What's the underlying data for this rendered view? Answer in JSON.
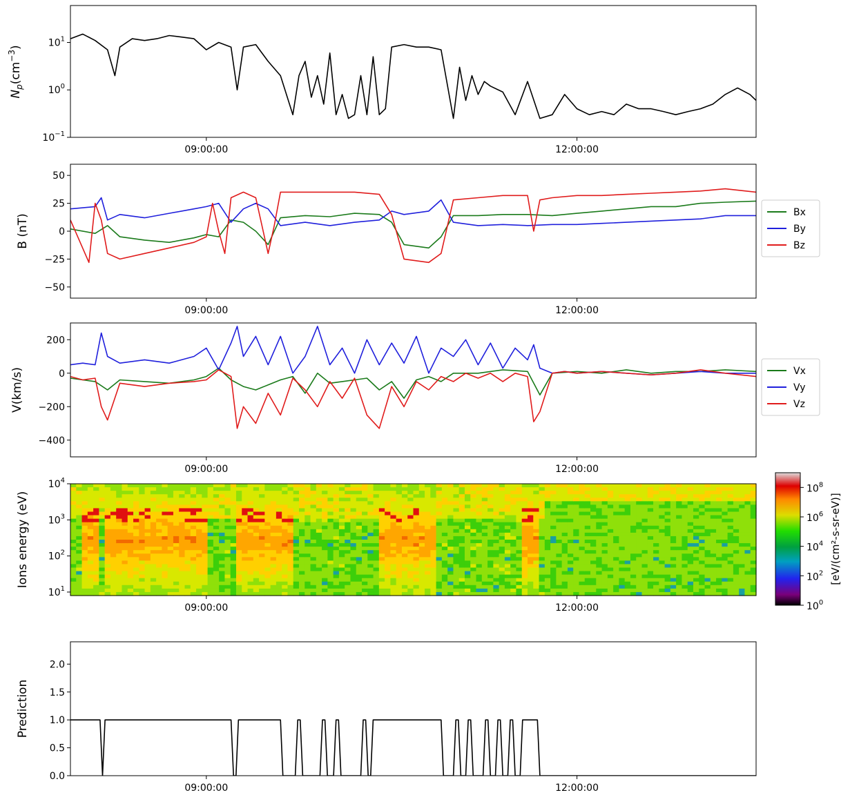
{
  "chart_data": [
    {
      "type": "line",
      "ylabel": "N_p(cm^-3)",
      "ylabel_main": "N",
      "ylabel_sub": "p",
      "ylabel_unit": "(cm",
      "ylabel_exp": "−3",
      "ylabel_close": ")",
      "yscale": "log",
      "ylim": [
        0.1,
        60
      ],
      "yticks": [
        {
          "base": "10",
          "exp": "−1",
          "value": 0.1
        },
        {
          "base": "10",
          "exp": "0",
          "value": 1
        },
        {
          "base": "10",
          "exp": "1",
          "value": 10
        }
      ],
      "xrange_hours": [
        7.9,
        13.45
      ],
      "xticks": [
        {
          "label": "09:00:00",
          "hour": 9
        },
        {
          "label": "12:00:00",
          "hour": 12
        }
      ],
      "series": [
        {
          "color": "#000000",
          "x": [
            7.9,
            8.0,
            8.1,
            8.2,
            8.26,
            8.3,
            8.4,
            8.5,
            8.6,
            8.7,
            8.8,
            8.9,
            9.0,
            9.1,
            9.2,
            9.25,
            9.3,
            9.4,
            9.5,
            9.6,
            9.7,
            9.75,
            9.8,
            9.85,
            9.9,
            9.95,
            10.0,
            10.05,
            10.1,
            10.15,
            10.2,
            10.25,
            10.3,
            10.35,
            10.4,
            10.45,
            10.5,
            10.6,
            10.7,
            10.8,
            10.9,
            11.0,
            11.05,
            11.1,
            11.15,
            11.2,
            11.25,
            11.3,
            11.4,
            11.5,
            11.6,
            11.7,
            11.8,
            11.9,
            12.0,
            12.1,
            12.2,
            12.3,
            12.4,
            12.5,
            12.6,
            12.7,
            12.8,
            12.9,
            13.0,
            13.1,
            13.2,
            13.3,
            13.4,
            13.45
          ],
          "values": [
            12,
            15,
            11,
            7,
            2,
            8,
            12,
            11,
            12,
            14,
            13,
            12,
            7,
            10,
            8,
            1,
            8,
            9,
            4,
            2,
            0.3,
            2,
            4,
            0.7,
            2,
            0.5,
            6,
            0.3,
            0.8,
            0.25,
            0.3,
            2,
            0.3,
            5,
            0.3,
            0.4,
            8,
            9,
            8,
            8,
            7,
            0.25,
            3,
            0.6,
            2,
            0.8,
            1.5,
            1.2,
            0.9,
            0.3,
            1.5,
            0.25,
            0.3,
            0.8,
            0.4,
            0.3,
            0.35,
            0.3,
            0.5,
            0.4,
            0.4,
            0.35,
            0.3,
            0.35,
            0.4,
            0.5,
            0.8,
            1.1,
            0.8,
            0.6
          ]
        }
      ]
    },
    {
      "type": "line",
      "ylabel": "B (nT)",
      "ylim": [
        -60,
        60
      ],
      "yticks": [
        {
          "label": "50",
          "value": 50
        },
        {
          "label": "25",
          "value": 25
        },
        {
          "label": "0",
          "value": 0
        },
        {
          "label": "−25",
          "value": -25
        },
        {
          "label": "−50",
          "value": -50
        }
      ],
      "xrange_hours": [
        7.9,
        13.45
      ],
      "xticks": [
        {
          "label": "09:00:00",
          "hour": 9
        },
        {
          "label": "12:00:00",
          "hour": 12
        }
      ],
      "legend": "right",
      "series": [
        {
          "name": "Bx",
          "color": "#1a7a1a",
          "x": [
            7.9,
            8.1,
            8.2,
            8.3,
            8.5,
            8.7,
            8.9,
            9.0,
            9.1,
            9.2,
            9.3,
            9.4,
            9.5,
            9.6,
            9.8,
            10.0,
            10.2,
            10.4,
            10.5,
            10.6,
            10.8,
            10.9,
            11.0,
            11.2,
            11.4,
            11.6,
            11.8,
            12.0,
            12.2,
            12.4,
            12.6,
            12.8,
            13.0,
            13.2,
            13.45
          ],
          "values": [
            2,
            -2,
            5,
            -5,
            -8,
            -10,
            -6,
            -3,
            -5,
            10,
            8,
            0,
            -12,
            12,
            14,
            13,
            16,
            15,
            8,
            -12,
            -15,
            -5,
            14,
            14,
            15,
            15,
            14,
            16,
            18,
            20,
            22,
            22,
            25,
            26,
            27
          ]
        },
        {
          "name": "By",
          "color": "#1f1fdc",
          "x": [
            7.9,
            8.1,
            8.15,
            8.2,
            8.3,
            8.5,
            8.7,
            8.9,
            9.0,
            9.1,
            9.2,
            9.3,
            9.4,
            9.5,
            9.6,
            9.8,
            10.0,
            10.2,
            10.4,
            10.5,
            10.6,
            10.8,
            10.9,
            11.0,
            11.2,
            11.4,
            11.6,
            11.8,
            12.0,
            12.2,
            12.4,
            12.6,
            12.8,
            13.0,
            13.2,
            13.45
          ],
          "values": [
            20,
            22,
            30,
            10,
            15,
            12,
            16,
            20,
            22,
            25,
            8,
            20,
            25,
            20,
            5,
            8,
            5,
            8,
            10,
            18,
            15,
            18,
            28,
            8,
            5,
            6,
            5,
            6,
            6,
            7,
            8,
            9,
            10,
            11,
            14,
            14
          ]
        },
        {
          "name": "Bz",
          "color": "#e01b1b",
          "x": [
            7.9,
            8.05,
            8.1,
            8.15,
            8.2,
            8.3,
            8.5,
            8.7,
            8.9,
            9.0,
            9.05,
            9.1,
            9.15,
            9.2,
            9.3,
            9.4,
            9.5,
            9.55,
            9.6,
            9.8,
            10.0,
            10.2,
            10.4,
            10.5,
            10.6,
            10.8,
            10.9,
            11.0,
            11.2,
            11.4,
            11.6,
            11.65,
            11.7,
            11.8,
            12.0,
            12.2,
            12.4,
            12.6,
            12.8,
            13.0,
            13.2,
            13.45
          ],
          "values": [
            10,
            -28,
            25,
            10,
            -20,
            -25,
            -20,
            -15,
            -10,
            -5,
            25,
            0,
            -20,
            30,
            35,
            30,
            -20,
            5,
            35,
            35,
            35,
            35,
            33,
            15,
            -25,
            -28,
            -20,
            28,
            30,
            32,
            32,
            0,
            28,
            30,
            32,
            32,
            33,
            34,
            35,
            36,
            38,
            35
          ]
        }
      ]
    },
    {
      "type": "line",
      "ylabel": "V(km/s)",
      "ylim": [
        -500,
        300
      ],
      "yticks": [
        {
          "label": "200",
          "value": 200
        },
        {
          "label": "0",
          "value": 0
        },
        {
          "label": "−200",
          "value": -200
        },
        {
          "label": "−400",
          "value": -400
        }
      ],
      "xrange_hours": [
        7.9,
        13.45
      ],
      "xticks": [
        {
          "label": "09:00:00",
          "hour": 9
        },
        {
          "label": "12:00:00",
          "hour": 12
        }
      ],
      "legend": "right",
      "series": [
        {
          "name": "Vx",
          "color": "#1a7a1a",
          "x": [
            7.9,
            8.1,
            8.2,
            8.3,
            8.5,
            8.7,
            8.9,
            9.0,
            9.1,
            9.2,
            9.3,
            9.4,
            9.5,
            9.6,
            9.7,
            9.8,
            9.9,
            10.0,
            10.1,
            10.2,
            10.3,
            10.4,
            10.5,
            10.6,
            10.7,
            10.8,
            10.9,
            11.0,
            11.2,
            11.4,
            11.6,
            11.7,
            11.8,
            12.0,
            12.2,
            12.4,
            12.6,
            12.8,
            13.0,
            13.2,
            13.45
          ],
          "values": [
            -30,
            -50,
            -100,
            -40,
            -50,
            -60,
            -40,
            -20,
            30,
            -40,
            -80,
            -100,
            -70,
            -40,
            -20,
            -120,
            0,
            -60,
            -50,
            -40,
            -30,
            -100,
            -50,
            -150,
            -40,
            -20,
            -50,
            0,
            0,
            20,
            10,
            -130,
            0,
            10,
            0,
            20,
            0,
            10,
            10,
            20,
            10
          ]
        },
        {
          "name": "Vy",
          "color": "#1f1fdc",
          "x": [
            7.9,
            8.0,
            8.1,
            8.15,
            8.2,
            8.3,
            8.5,
            8.7,
            8.9,
            9.0,
            9.1,
            9.2,
            9.25,
            9.3,
            9.4,
            9.5,
            9.6,
            9.7,
            9.8,
            9.9,
            10.0,
            10.1,
            10.2,
            10.3,
            10.4,
            10.5,
            10.6,
            10.7,
            10.8,
            10.9,
            11.0,
            11.1,
            11.2,
            11.3,
            11.4,
            11.5,
            11.6,
            11.65,
            11.7,
            11.8,
            11.9,
            12.0,
            12.2,
            12.4,
            12.6,
            12.8,
            13.0,
            13.2,
            13.45
          ],
          "values": [
            50,
            60,
            50,
            240,
            100,
            60,
            80,
            60,
            100,
            150,
            20,
            180,
            280,
            100,
            220,
            50,
            220,
            0,
            100,
            280,
            50,
            150,
            0,
            200,
            50,
            180,
            60,
            220,
            0,
            150,
            100,
            200,
            50,
            180,
            30,
            150,
            80,
            170,
            30,
            0,
            10,
            0,
            10,
            0,
            -10,
            0,
            10,
            0,
            0
          ]
        },
        {
          "name": "Vz",
          "color": "#e01b1b",
          "x": [
            7.9,
            8.0,
            8.1,
            8.15,
            8.2,
            8.3,
            8.5,
            8.7,
            8.9,
            9.0,
            9.1,
            9.2,
            9.25,
            9.3,
            9.4,
            9.5,
            9.6,
            9.7,
            9.8,
            9.9,
            10.0,
            10.1,
            10.2,
            10.3,
            10.4,
            10.5,
            10.6,
            10.7,
            10.8,
            10.9,
            11.0,
            11.1,
            11.2,
            11.3,
            11.4,
            11.5,
            11.6,
            11.65,
            11.7,
            11.8,
            11.9,
            12.0,
            12.2,
            12.4,
            12.6,
            12.8,
            13.0,
            13.2,
            13.45
          ],
          "values": [
            -20,
            -40,
            -30,
            -200,
            -280,
            -60,
            -80,
            -60,
            -50,
            -40,
            20,
            -20,
            -330,
            -200,
            -300,
            -120,
            -250,
            -30,
            -100,
            -200,
            -50,
            -150,
            -30,
            -250,
            -330,
            -80,
            -200,
            -50,
            -100,
            -20,
            -50,
            0,
            -30,
            0,
            -50,
            0,
            -20,
            -290,
            -230,
            0,
            10,
            0,
            10,
            0,
            -10,
            0,
            20,
            0,
            -20
          ]
        }
      ]
    },
    {
      "type": "heatmap",
      "ylabel": "Ions energy (eV)",
      "yscale": "log",
      "ylim": [
        8,
        10000
      ],
      "yticks": [
        {
          "base": "10",
          "exp": "1",
          "value": 10
        },
        {
          "base": "10",
          "exp": "2",
          "value": 100
        },
        {
          "base": "10",
          "exp": "3",
          "value": 1000
        },
        {
          "base": "10",
          "exp": "4",
          "value": 10000
        }
      ],
      "xrange_hours": [
        7.9,
        13.45
      ],
      "xticks": [
        {
          "label": "09:00:00",
          "hour": 9
        },
        {
          "label": "12:00:00",
          "hour": 12
        }
      ],
      "intense_intervals_hours": [
        [
          8.0,
          8.15
        ],
        [
          8.2,
          9.0
        ],
        [
          9.25,
          9.7
        ],
        [
          10.4,
          10.85
        ],
        [
          11.55,
          11.7
        ]
      ],
      "colorbar": {
        "label": "[eV/(cm²-s-sr-eV)]",
        "scale": "log",
        "range": [
          1,
          1000000000
        ],
        "ticks": [
          {
            "base": "10",
            "exp": "8",
            "value": 100000000
          },
          {
            "base": "10",
            "exp": "6",
            "value": 1000000
          },
          {
            "base": "10",
            "exp": "4",
            "value": 10000
          },
          {
            "base": "10",
            "exp": "2",
            "value": 100
          },
          {
            "base": "10",
            "exp": "0",
            "value": 1
          }
        ]
      }
    },
    {
      "type": "line",
      "ylabel": "Prediction",
      "ylim": [
        0,
        2.4
      ],
      "yticks": [
        {
          "label": "2.0",
          "value": 2.0
        },
        {
          "label": "1.5",
          "value": 1.5
        },
        {
          "label": "1.0",
          "value": 1.0
        },
        {
          "label": "0.5",
          "value": 0.5
        },
        {
          "label": "0.0",
          "value": 0.0
        }
      ],
      "xrange_hours": [
        7.9,
        13.45
      ],
      "xticks": [
        {
          "label": "09:00:00",
          "hour": 9
        },
        {
          "label": "12:00:00",
          "hour": 12
        }
      ],
      "series": [
        {
          "color": "#000000",
          "x": [
            7.9,
            8.14,
            8.16,
            8.18,
            8.2,
            9.2,
            9.22,
            9.24,
            9.26,
            9.6,
            9.62,
            9.72,
            9.74,
            9.76,
            9.78,
            9.92,
            9.94,
            9.96,
            9.98,
            10.03,
            10.05,
            10.07,
            10.09,
            10.25,
            10.27,
            10.29,
            10.31,
            10.33,
            10.35,
            10.37,
            10.39,
            10.9,
            10.92,
            11.0,
            11.02,
            11.04,
            11.06,
            11.1,
            11.12,
            11.14,
            11.16,
            11.24,
            11.26,
            11.28,
            11.3,
            11.34,
            11.36,
            11.38,
            11.4,
            11.44,
            11.46,
            11.48,
            11.5,
            11.54,
            11.56,
            11.58,
            11.6,
            11.68,
            11.7,
            11.72,
            13.45
          ],
          "values": [
            1,
            1,
            0,
            1,
            1,
            1,
            0,
            0,
            1,
            1,
            0,
            0,
            1,
            1,
            0,
            0,
            1,
            1,
            0,
            0,
            1,
            1,
            0,
            0,
            1,
            1,
            0,
            0,
            1,
            1,
            1,
            1,
            0,
            0,
            1,
            1,
            0,
            0,
            1,
            1,
            0,
            0,
            1,
            1,
            0,
            0,
            1,
            1,
            0,
            0,
            1,
            1,
            0,
            0,
            1,
            1,
            1,
            1,
            0,
            0,
            0
          ]
        }
      ]
    }
  ]
}
